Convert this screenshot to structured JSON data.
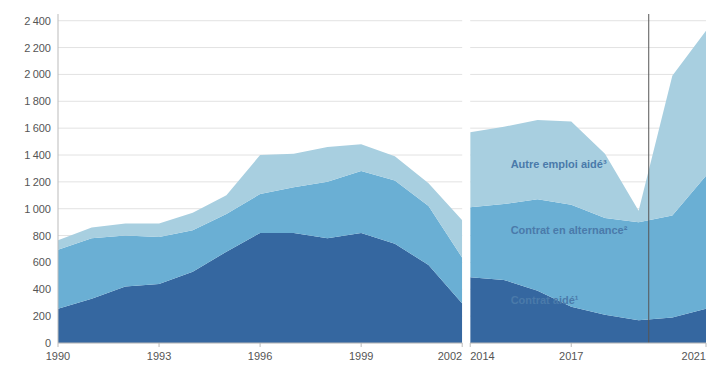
{
  "chart_data": [
    {
      "type": "area",
      "stacked": true,
      "x": [
        1990,
        1991,
        1992,
        1993,
        1994,
        1995,
        1996,
        1997,
        1998,
        1999,
        2000,
        2001,
        2002
      ],
      "series": [
        {
          "color": "#3567a0",
          "values": [
            255,
            330,
            420,
            440,
            530,
            680,
            820,
            820,
            780,
            820,
            740,
            580,
            295
          ]
        },
        {
          "color": "#6aafd4",
          "values": [
            440,
            450,
            380,
            350,
            310,
            280,
            290,
            340,
            420,
            460,
            470,
            440,
            340
          ]
        },
        {
          "color": "#a8cfe0",
          "values": [
            70,
            80,
            90,
            100,
            130,
            140,
            290,
            250,
            260,
            200,
            180,
            170,
            280
          ]
        }
      ],
      "xlim": [
        1990,
        2002
      ],
      "xticks": [
        1990,
        1993,
        1996,
        1999,
        2002
      ],
      "ylim": [
        0,
        2450
      ],
      "yticks": [
        0,
        200,
        400,
        600,
        800,
        {
          "value": 1000,
          "label": "1 000"
        },
        {
          "value": 1200,
          "label": "1 200"
        },
        {
          "value": 1400,
          "label": "1 400"
        },
        {
          "value": 1600,
          "label": "1 600"
        },
        {
          "value": 1800,
          "label": "1 800"
        },
        {
          "value": 2000,
          "label": "2 000"
        },
        {
          "value": 2200,
          "label": "2 200"
        },
        {
          "value": 2400,
          "label": "2 400"
        }
      ],
      "grid": true
    },
    {
      "type": "area",
      "stacked": true,
      "x": [
        2014,
        2015,
        2016,
        2017,
        2018,
        2019,
        2020,
        2021
      ],
      "series": [
        {
          "color": "#3567a0",
          "values": [
            490,
            470,
            390,
            270,
            210,
            170,
            190,
            255
          ]
        },
        {
          "color": "#6aafd4",
          "values": [
            520,
            565,
            680,
            760,
            720,
            730,
            760,
            990
          ]
        },
        {
          "color": "#a8cfe0",
          "values": [
            560,
            575,
            590,
            620,
            480,
            85,
            1040,
            1080
          ]
        }
      ],
      "xlim": [
        2014,
        2021
      ],
      "xticks": [
        2014,
        2017,
        2021
      ],
      "ylim": [
        0,
        2450
      ],
      "yticks": [
        0,
        200,
        400,
        600,
        800,
        1000,
        1200,
        1400,
        1600,
        1800,
        2000,
        2200,
        2400
      ],
      "grid": true,
      "tick_labels": "x",
      "vlines": [
        2019.3
      ],
      "annotations": [
        {
          "text": "Autre emploi aidé³",
          "x": 2015.2,
          "y": 1330,
          "color": "#4a7aaa"
        },
        {
          "text": "Contrat en alternance²",
          "x": 2015.2,
          "y": 840,
          "color": "#4a7aaa"
        },
        {
          "text": "Contrat aidé¹",
          "x": 2015.2,
          "y": 320,
          "color": "#4a7aaa"
        }
      ]
    }
  ]
}
